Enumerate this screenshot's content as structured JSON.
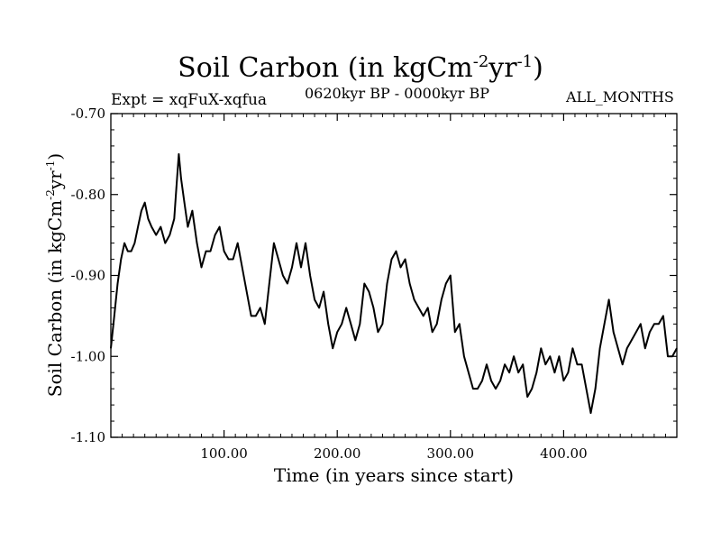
{
  "header": {
    "title_main": "Soil Carbon (in kgCm",
    "title_exp1": "-2",
    "title_mid": "yr",
    "title_exp2": "-1",
    "title_end": ")",
    "experiment": "Expt = xqFuX-xqfua",
    "period": "0620kyr BP - 0000kyr BP",
    "months": "ALL_MONTHS"
  },
  "chart_data": {
    "type": "line",
    "title": "Soil Carbon (in kgCm-2yr-1)",
    "xlabel": "Time (in years since start)",
    "ylabel": "Soil Carbon (in kgCm-2yr-1)",
    "xlim": [
      0,
      500
    ],
    "ylim": [
      -1.1,
      -0.7
    ],
    "xticks": [
      100,
      200,
      300,
      400
    ],
    "xtick_labels": [
      "100.00",
      "200.00",
      "300.00",
      "400.00"
    ],
    "yticks": [
      -0.7,
      -0.8,
      -0.9,
      -1.0,
      -1.1
    ],
    "ytick_labels": [
      "-0.70",
      "-0.80",
      "-0.90",
      "-1.00",
      "-1.10"
    ],
    "grid": false,
    "series": [
      {
        "name": "Soil Carbon",
        "x": [
          0,
          3,
          6,
          9,
          12,
          15,
          18,
          21,
          24,
          27,
          30,
          33,
          36,
          40,
          44,
          48,
          52,
          56,
          58,
          60,
          62,
          65,
          68,
          72,
          76,
          80,
          84,
          88,
          92,
          96,
          100,
          104,
          108,
          112,
          116,
          120,
          124,
          128,
          132,
          136,
          140,
          144,
          148,
          152,
          156,
          160,
          164,
          168,
          172,
          176,
          180,
          184,
          188,
          192,
          196,
          200,
          204,
          208,
          212,
          216,
          220,
          224,
          228,
          232,
          236,
          240,
          244,
          248,
          252,
          256,
          260,
          264,
          268,
          272,
          276,
          280,
          284,
          288,
          292,
          296,
          300,
          304,
          308,
          312,
          316,
          320,
          324,
          328,
          332,
          336,
          340,
          344,
          348,
          352,
          356,
          360,
          364,
          368,
          372,
          376,
          380,
          384,
          388,
          392,
          396,
          400,
          404,
          408,
          412,
          416,
          420,
          424,
          428,
          432,
          436,
          440,
          444,
          448,
          452,
          456,
          460,
          464,
          468,
          472,
          476,
          480,
          484,
          488,
          492,
          496,
          500
        ],
        "values": [
          -0.99,
          -0.95,
          -0.91,
          -0.88,
          -0.86,
          -0.87,
          -0.87,
          -0.86,
          -0.84,
          -0.82,
          -0.81,
          -0.83,
          -0.84,
          -0.85,
          -0.84,
          -0.86,
          -0.85,
          -0.83,
          -0.79,
          -0.75,
          -0.78,
          -0.81,
          -0.84,
          -0.82,
          -0.86,
          -0.89,
          -0.87,
          -0.87,
          -0.85,
          -0.84,
          -0.87,
          -0.88,
          -0.88,
          -0.86,
          -0.89,
          -0.92,
          -0.95,
          -0.95,
          -0.94,
          -0.96,
          -0.91,
          -0.86,
          -0.88,
          -0.9,
          -0.91,
          -0.89,
          -0.86,
          -0.89,
          -0.86,
          -0.9,
          -0.93,
          -0.94,
          -0.92,
          -0.96,
          -0.99,
          -0.97,
          -0.96,
          -0.94,
          -0.96,
          -0.98,
          -0.96,
          -0.91,
          -0.92,
          -0.94,
          -0.97,
          -0.96,
          -0.91,
          -0.88,
          -0.87,
          -0.89,
          -0.88,
          -0.91,
          -0.93,
          -0.94,
          -0.95,
          -0.94,
          -0.97,
          -0.96,
          -0.93,
          -0.91,
          -0.9,
          -0.97,
          -0.96,
          -1.0,
          -1.02,
          -1.04,
          -1.04,
          -1.03,
          -1.01,
          -1.03,
          -1.04,
          -1.03,
          -1.01,
          -1.02,
          -1.0,
          -1.02,
          -1.01,
          -1.05,
          -1.04,
          -1.02,
          -0.99,
          -1.01,
          -1.0,
          -1.02,
          -1.0,
          -1.03,
          -1.02,
          -0.99,
          -1.01,
          -1.01,
          -1.04,
          -1.07,
          -1.04,
          -0.99,
          -0.96,
          -0.93,
          -0.97,
          -0.99,
          -1.01,
          -0.99,
          -0.98,
          -0.97,
          -0.96,
          -0.99,
          -0.97,
          -0.96,
          -0.96,
          -0.95,
          -1.0,
          -1.0,
          -0.99
        ]
      }
    ]
  }
}
